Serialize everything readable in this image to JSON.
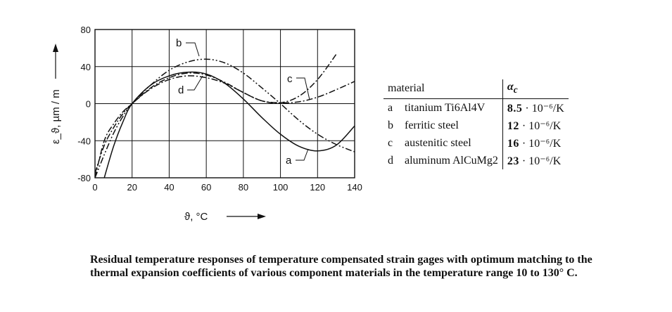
{
  "chart_data": {
    "type": "line",
    "x_label": "ϑ, °C",
    "y_label": "ε_ϑ, µm / m",
    "xlim": [
      0,
      140
    ],
    "ylim": [
      -80,
      80
    ],
    "x_ticks": [
      "0",
      "20",
      "40",
      "60",
      "80",
      "100",
      "120",
      "140"
    ],
    "y_ticks": [
      "80",
      "40",
      "0",
      "-40",
      "-80"
    ],
    "grid": true,
    "series": [
      {
        "name": "a",
        "style": "solid",
        "x": [
          5,
          10,
          15,
          20,
          30,
          40,
          50,
          60,
          70,
          80,
          90,
          100,
          110,
          120,
          130,
          140
        ],
        "y": [
          -80,
          -46,
          -20,
          0,
          20,
          30,
          34,
          32,
          22,
          5,
          -15,
          -33,
          -46,
          -51,
          -45,
          -24
        ]
      },
      {
        "name": "b",
        "style": "dash-dot-dot",
        "x": [
          0,
          5,
          10,
          15,
          20,
          30,
          40,
          50,
          60,
          70,
          80,
          90,
          100,
          110,
          120,
          130,
          140
        ],
        "y": [
          -80,
          -55,
          -32,
          -14,
          0,
          20,
          36,
          45,
          48,
          44,
          33,
          17,
          0,
          -18,
          -33,
          -44,
          -52
        ]
      },
      {
        "name": "c",
        "style": "dash-dot",
        "x": [
          0,
          5,
          10,
          15,
          20,
          30,
          40,
          50,
          60,
          70,
          80,
          90,
          100,
          110,
          120,
          130,
          140
        ],
        "y": [
          -80,
          -40,
          -22,
          -9,
          0,
          17,
          28,
          33,
          31,
          23,
          12,
          3,
          1,
          2,
          7,
          15,
          24
        ]
      },
      {
        "name": "d",
        "style": "dash-dot",
        "x": [
          0,
          5,
          10,
          15,
          20,
          30,
          40,
          50,
          60,
          70,
          80,
          90,
          100,
          110,
          120,
          130
        ],
        "y": [
          -75,
          -45,
          -26,
          -11,
          0,
          16,
          26,
          30,
          28,
          22,
          12,
          3,
          1,
          8,
          26,
          53
        ]
      }
    ],
    "curve_labels": [
      "a",
      "b",
      "c",
      "d"
    ]
  },
  "table": {
    "header_material": "material",
    "header_alpha": "α",
    "header_alpha_sub": "c",
    "rows": [
      {
        "key": "a",
        "material": "titanium Ti6Al4V",
        "coef": "8.5",
        "unit": "· 10⁻⁶/K"
      },
      {
        "key": "b",
        "material": "ferritic steel",
        "coef": "12",
        "unit": "· 10⁻⁶/K"
      },
      {
        "key": "c",
        "material": "austenitic steel",
        "coef": "16",
        "unit": "· 10⁻⁶/K"
      },
      {
        "key": "d",
        "material": "aluminum AlCuMg2",
        "coef": "23",
        "unit": "· 10⁻⁶/K"
      }
    ]
  },
  "caption": "Residual temperature responses of temperature compensated strain gages with optimum matching to the thermal expansion coefficients of various component materials in the temperature range 10 to 130° C."
}
